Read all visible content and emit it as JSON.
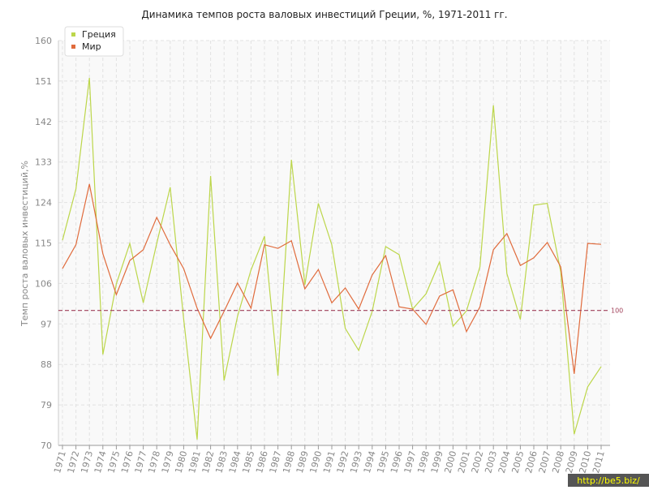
{
  "chart_data": {
    "type": "line",
    "title": "Динамика темпов роста валовых инвестиций Греции, %, 1971-2011 гг.",
    "y_label": "Темп роста валовых инвестиций,%",
    "watermark": "http://be5.biz/",
    "categories": [
      "1971",
      "1972",
      "1973",
      "1974",
      "1975",
      "1976",
      "1977",
      "1978",
      "1979",
      "1980",
      "1981",
      "1982",
      "1983",
      "1984",
      "1985",
      "1986",
      "1987",
      "1988",
      "1989",
      "1990",
      "1991",
      "1992",
      "1993",
      "1994",
      "1995",
      "1996",
      "1997",
      "1998",
      "1999",
      "2000",
      "2001",
      "2002",
      "2003",
      "2004",
      "2005",
      "2006",
      "2007",
      "2008",
      "2009",
      "2010",
      "2011"
    ],
    "series": [
      {
        "name": "Греция",
        "color": "#bcd64a",
        "values": [
          115.6,
          127,
          151.7,
          90.2,
          105.9,
          114.9,
          101.7,
          114.9,
          127.4,
          98.1,
          71.3,
          129.9,
          84.4,
          98.7,
          109,
          116.5,
          85.5,
          133.5,
          105.7,
          123.8,
          114.6,
          96,
          91.1,
          99.8,
          114.2,
          112.4,
          100.3,
          103.7,
          110.8,
          96.5,
          99.9,
          109.7,
          145.6,
          108.2,
          98,
          123.4,
          123.8,
          108.6,
          72.5,
          83,
          87.5
        ]
      },
      {
        "name": "Мир",
        "color": "#e06b3c",
        "values": [
          109.3,
          114.6,
          128.1,
          112.6,
          103.5,
          111.1,
          113.5,
          120.7,
          114.6,
          109.3,
          100.5,
          93.8,
          99.8,
          106.1,
          100.5,
          114.6,
          113.8,
          115.5,
          104.8,
          109.1,
          101.7,
          105,
          100.3,
          107.9,
          112.2,
          100.8,
          100.3,
          96.9,
          103.2,
          104.6,
          95.3,
          100.8,
          113.5,
          117.1,
          110,
          111.7,
          115.1,
          109.7,
          85.9,
          114.9,
          114.7
        ]
      }
    ],
    "reference_line": 100,
    "reference_color": "#a0405a",
    "ylim": [
      70,
      160
    ],
    "yticks": [
      70,
      79,
      88,
      97,
      106,
      115,
      124,
      133,
      142,
      151,
      160
    ],
    "grid": true,
    "legend": "top-left"
  }
}
